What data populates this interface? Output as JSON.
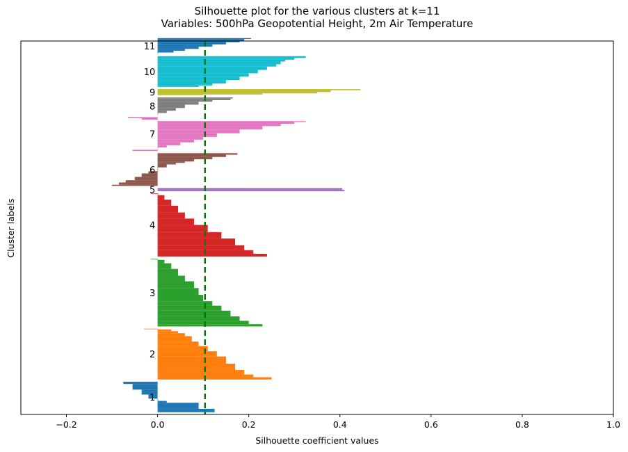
{
  "chart_data": {
    "type": "bar",
    "orientation": "horizontal",
    "title_line1": "Silhouette plot for the various clusters at k=11",
    "title_line2": "Variables: 500hPa Geopotential Height, 2m Air Temperature",
    "xlabel": "Silhouette coefficient values",
    "ylabel": "Cluster labels",
    "xlim": [
      -0.3,
      1.0
    ],
    "ylim": [
      0,
      1655
    ],
    "xticks": [
      -0.2,
      0.0,
      0.2,
      0.4,
      0.6,
      0.8,
      1.0
    ],
    "xtick_labels": [
      "−0.2",
      "0.0",
      "0.2",
      "0.4",
      "0.6",
      "0.8",
      "1.0"
    ],
    "average_silhouette": 0.104,
    "average_line_color": "#008000",
    "clusters": [
      {
        "label": "1",
        "color": "#1f77b4",
        "y_start": 10,
        "y_end": 145,
        "profile": [
          [
            0.125,
            0
          ],
          [
            0.09,
            15
          ],
          [
            0.02,
            42
          ],
          [
            0.0,
            50
          ],
          [
            -0.02,
            60
          ],
          [
            -0.035,
            78
          ],
          [
            -0.055,
            100
          ],
          [
            -0.075,
            125
          ],
          [
            -0.076,
            135
          ]
        ]
      },
      {
        "label": "2",
        "color": "#ff7f0e",
        "y_start": 155,
        "y_end": 380,
        "profile": [
          [
            0.25,
            0
          ],
          [
            0.21,
            10
          ],
          [
            0.19,
            22
          ],
          [
            0.17,
            42
          ],
          [
            0.15,
            70
          ],
          [
            0.13,
            102
          ],
          [
            0.11,
            125
          ],
          [
            0.09,
            148
          ],
          [
            0.075,
            168
          ],
          [
            0.06,
            192
          ],
          [
            0.045,
            205
          ],
          [
            0.03,
            214
          ],
          [
            0.0,
            222
          ],
          [
            -0.03,
            225
          ]
        ]
      },
      {
        "label": "3",
        "color": "#2ca02c",
        "y_start": 390,
        "y_end": 690,
        "profile": [
          [
            0.23,
            0
          ],
          [
            0.2,
            10
          ],
          [
            0.18,
            25
          ],
          [
            0.16,
            45
          ],
          [
            0.14,
            70
          ],
          [
            0.12,
            92
          ],
          [
            0.1,
            112
          ],
          [
            0.09,
            140
          ],
          [
            0.08,
            170
          ],
          [
            0.06,
            200
          ],
          [
            0.045,
            225
          ],
          [
            0.03,
            255
          ],
          [
            0.015,
            280
          ],
          [
            0.0,
            295
          ],
          [
            -0.015,
            300
          ]
        ]
      },
      {
        "label": "4",
        "color": "#d62728",
        "y_start": 700,
        "y_end": 980,
        "profile": [
          [
            0.24,
            0
          ],
          [
            0.21,
            12
          ],
          [
            0.19,
            28
          ],
          [
            0.17,
            50
          ],
          [
            0.14,
            80
          ],
          [
            0.11,
            108
          ],
          [
            0.08,
            140
          ],
          [
            0.06,
            168
          ],
          [
            0.045,
            195
          ],
          [
            0.03,
            225
          ],
          [
            0.015,
            252
          ],
          [
            0.0,
            272
          ],
          [
            -0.015,
            280
          ]
        ]
      },
      {
        "label": "5",
        "color": "#9467bd",
        "y_start": 990,
        "y_end": 1003,
        "profile": [
          [
            0.41,
            0
          ],
          [
            0.405,
            6
          ],
          [
            0.19,
            13
          ]
        ]
      },
      {
        "label": "6",
        "color": "#8c564b",
        "y_start": 1013,
        "y_end": 1158,
        "profile": [
          [
            -0.1,
            0
          ],
          [
            -0.085,
            5
          ],
          [
            -0.07,
            15
          ],
          [
            -0.05,
            25
          ],
          [
            -0.035,
            40
          ],
          [
            -0.02,
            55
          ],
          [
            0.0,
            65
          ],
          [
            0.02,
            82
          ],
          [
            0.04,
            95
          ],
          [
            0.06,
            102
          ],
          [
            0.08,
            108
          ],
          [
            0.12,
            118
          ],
          [
            0.15,
            128
          ],
          [
            0.175,
            138
          ]
        ]
      },
      {
        "label": "7",
        "color": "#e377c2",
        "y_start": 1168,
        "y_end": 1318,
        "profile": [
          [
            -0.055,
            0
          ],
          [
            0.0,
            5
          ],
          [
            0.02,
            15
          ],
          [
            0.05,
            25
          ],
          [
            0.08,
            38
          ],
          [
            0.1,
            50
          ],
          [
            0.13,
            62
          ],
          [
            0.18,
            78
          ],
          [
            0.23,
            95
          ],
          [
            0.27,
            110
          ],
          [
            0.3,
            120
          ],
          [
            0.325,
            128
          ],
          [
            0.0,
            132
          ],
          [
            -0.035,
            138
          ],
          [
            -0.065,
            145
          ]
        ]
      },
      {
        "label": "8",
        "color": "#7f7f7f",
        "y_start": 1328,
        "y_end": 1405,
        "profile": [
          [
            0.0,
            0
          ],
          [
            0.02,
            8
          ],
          [
            0.04,
            18
          ],
          [
            0.06,
            30
          ],
          [
            0.09,
            45
          ],
          [
            0.12,
            58
          ],
          [
            0.16,
            65
          ],
          [
            0.165,
            72
          ]
        ]
      },
      {
        "label": "9",
        "color": "#bcbd22",
        "y_start": 1415,
        "y_end": 1442,
        "profile": [
          [
            0.1,
            0
          ],
          [
            0.23,
            3
          ],
          [
            0.35,
            8
          ],
          [
            0.38,
            14
          ],
          [
            0.445,
            22
          ]
        ]
      },
      {
        "label": "10",
        "color": "#17becf",
        "y_start": 1452,
        "y_end": 1588,
        "profile": [
          [
            0.09,
            0
          ],
          [
            0.12,
            6
          ],
          [
            0.15,
            15
          ],
          [
            0.18,
            30
          ],
          [
            0.2,
            45
          ],
          [
            0.22,
            60
          ],
          [
            0.24,
            75
          ],
          [
            0.26,
            90
          ],
          [
            0.27,
            100
          ],
          [
            0.28,
            112
          ],
          [
            0.3,
            120
          ],
          [
            0.325,
            128
          ]
        ]
      },
      {
        "label": "11",
        "color": "#1f77b4",
        "y_start": 1598,
        "y_end": 1668,
        "profile": [
          [
            0.0,
            0
          ],
          [
            0.035,
            6
          ],
          [
            0.06,
            14
          ],
          [
            0.09,
            22
          ],
          [
            0.12,
            32
          ],
          [
            0.15,
            42
          ],
          [
            0.18,
            52
          ],
          [
            0.19,
            58
          ],
          [
            0.205,
            66
          ]
        ]
      }
    ]
  }
}
